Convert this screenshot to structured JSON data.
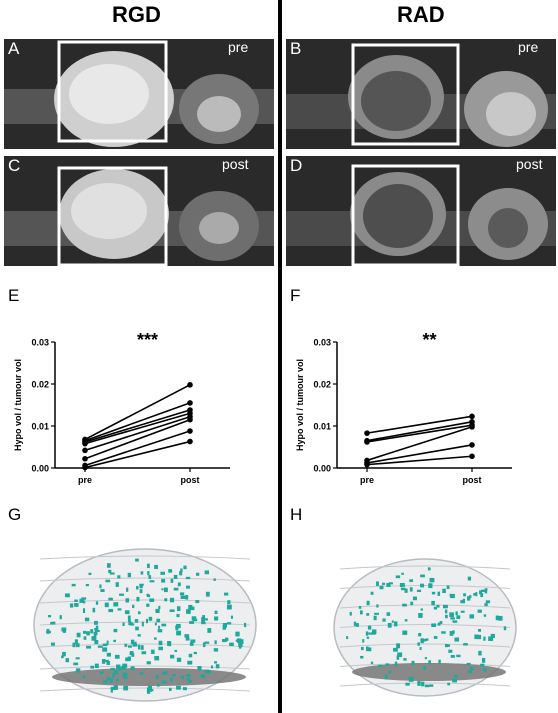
{
  "headers": {
    "left": "RGD",
    "right": "RAD"
  },
  "panels": {
    "A": {
      "letter": "A",
      "tag": "pre"
    },
    "B": {
      "letter": "B",
      "tag": "pre"
    },
    "C": {
      "letter": "C",
      "tag": "post"
    },
    "D": {
      "letter": "D",
      "tag": "post"
    },
    "E": {
      "letter": "E"
    },
    "F": {
      "letter": "F"
    },
    "G": {
      "letter": "G"
    },
    "H": {
      "letter": "H"
    }
  },
  "chart_data": [
    {
      "id": "E",
      "type": "line",
      "annotation": "***",
      "ylabel": "Hypo vol / tumour vol",
      "categories": [
        "pre",
        "post"
      ],
      "ylim": [
        0,
        0.03
      ],
      "yticks": [
        "0.00",
        "0.01",
        "0.02",
        "0.03"
      ],
      "pairs": [
        [
          0.0068,
          0.0198
        ],
        [
          0.0065,
          0.0155
        ],
        [
          0.0062,
          0.0138
        ],
        [
          0.0058,
          0.013
        ],
        [
          0.0042,
          0.0122
        ],
        [
          0.0022,
          0.0115
        ],
        [
          0.0006,
          0.0088
        ],
        [
          0.0001,
          0.0063
        ]
      ]
    },
    {
      "id": "F",
      "type": "line",
      "annotation": "**",
      "ylabel": "Hypo vol / tumour vol",
      "categories": [
        "pre",
        "post"
      ],
      "ylim": [
        0,
        0.03
      ],
      "yticks": [
        "0.00",
        "0.01",
        "0.02",
        "0.03"
      ],
      "pairs": [
        [
          0.0083,
          0.0123
        ],
        [
          0.0065,
          0.011
        ],
        [
          0.0062,
          0.0102
        ],
        [
          0.0018,
          0.0098
        ],
        [
          0.0012,
          0.0055
        ],
        [
          0.0008,
          0.0028
        ]
      ]
    }
  ],
  "colors": {
    "mri_bg": "#2a2a2a",
    "box": "#ffffff",
    "vessel": "#1fa89c",
    "shell": "#e8eaec"
  }
}
